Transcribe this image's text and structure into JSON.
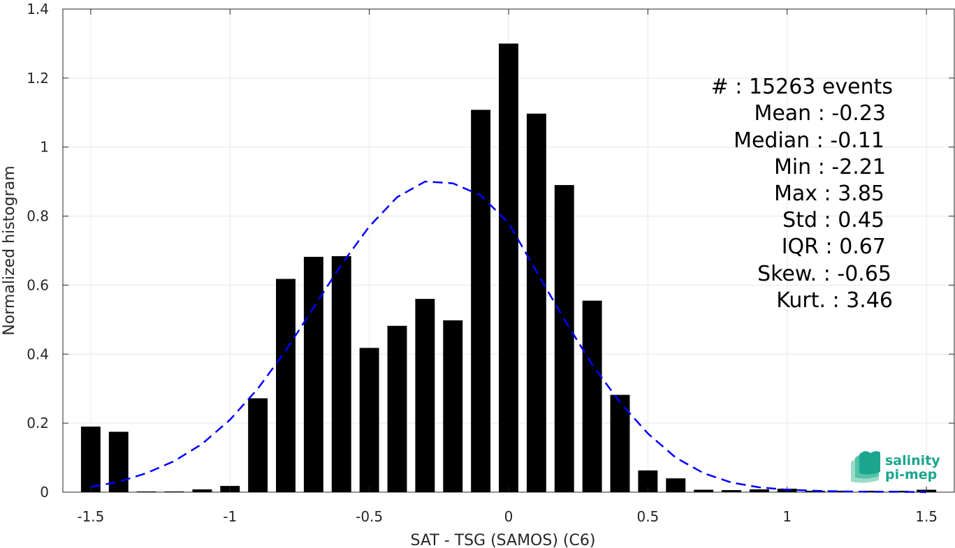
{
  "chart_data": {
    "type": "bar",
    "xlabel": "SAT - TSG (SAMOS) (C6)",
    "ylabel": "Normalized histogram",
    "xlim": [
      -1.6,
      1.6
    ],
    "ylim": [
      0,
      1.4
    ],
    "xticks": [
      -1.5,
      -1,
      -0.5,
      0,
      0.5,
      1,
      1.5
    ],
    "xtick_labels": [
      "-1.5",
      "-1",
      "-0.5",
      "0",
      "0.5",
      "1",
      "1.5"
    ],
    "yticks": [
      0,
      0.2,
      0.4,
      0.6,
      0.8,
      1,
      1.2,
      1.4
    ],
    "ytick_labels": [
      "0",
      "0.2",
      "0.4",
      "0.6",
      "0.8",
      "1",
      "1.2",
      "1.4"
    ],
    "grid": true,
    "bar_width": 0.07,
    "bar_color": "#000000",
    "bins": [
      -1.5,
      -1.4,
      -1.3,
      -1.2,
      -1.1,
      -1.0,
      -0.9,
      -0.8,
      -0.7,
      -0.6,
      -0.5,
      -0.4,
      -0.3,
      -0.2,
      -0.1,
      0.0,
      0.1,
      0.2,
      0.3,
      0.4,
      0.5,
      0.6,
      0.7,
      0.8,
      0.9,
      1.0,
      1.1,
      1.2,
      1.3,
      1.4,
      1.5
    ],
    "values": [
      0.19,
      0.175,
      0.002,
      0.002,
      0.008,
      0.018,
      0.272,
      0.618,
      0.682,
      0.684,
      0.418,
      0.482,
      0.56,
      0.498,
      1.108,
      1.3,
      1.097,
      0.89,
      0.555,
      0.282,
      0.063,
      0.04,
      0.007,
      0.006,
      0.008,
      0.01,
      0.004,
      0.004,
      0.004,
      0.004,
      0.007
    ],
    "fit_curve": {
      "color": "#0000ff",
      "style": "dashed",
      "x": [
        -1.5,
        -1.4,
        -1.3,
        -1.2,
        -1.1,
        -1.0,
        -0.9,
        -0.8,
        -0.7,
        -0.6,
        -0.5,
        -0.4,
        -0.3,
        -0.2,
        -0.1,
        0.0,
        0.1,
        0.2,
        0.3,
        0.4,
        0.5,
        0.6,
        0.7,
        0.8,
        0.9,
        1.0,
        1.1,
        1.2,
        1.3,
        1.4,
        1.5
      ],
      "y": [
        0.015,
        0.03,
        0.055,
        0.09,
        0.14,
        0.21,
        0.3,
        0.41,
        0.535,
        0.66,
        0.77,
        0.855,
        0.9,
        0.895,
        0.86,
        0.78,
        0.64,
        0.5,
        0.37,
        0.26,
        0.17,
        0.1,
        0.055,
        0.028,
        0.014,
        0.007,
        0.004,
        0.002,
        0.001,
        0.001,
        0.0
      ]
    },
    "annotations": [
      "#  : 15263 events",
      "Mean : -0.23",
      "Median : -0.11",
      "Min : -2.21",
      "Max : 3.85",
      "Std : 0.45",
      "IQR : 0.67",
      "Skew. : -0.65",
      "Kurt. : 3.46"
    ]
  },
  "logo": {
    "line1": "salinity",
    "line2": "pi-mep",
    "color": "#1aa58e"
  }
}
